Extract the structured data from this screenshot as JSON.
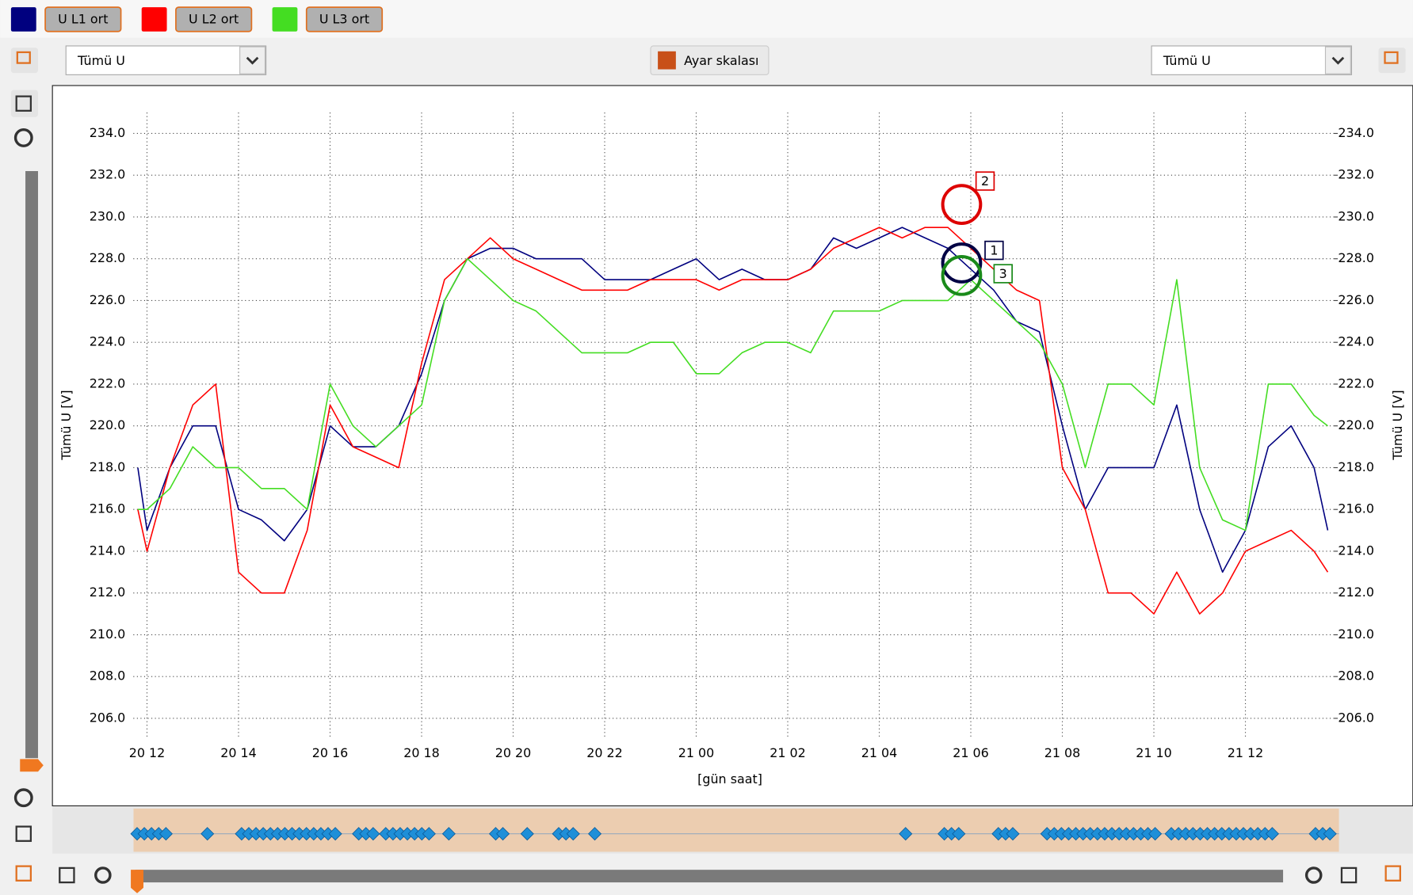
{
  "chart_data": {
    "type": "line",
    "left_selector": "Tümü U",
    "right_selector": "Tümü U",
    "scale_button": "Ayar skalası",
    "y_label": "Tümü U [V]",
    "y2_label": "Tümü U [V]",
    "x_label": "[gün saat]",
    "x": [
      11.8,
      12.0,
      12.5,
      13.0,
      13.5,
      14.0,
      14.5,
      15.0,
      15.5,
      16.0,
      16.5,
      17.0,
      17.5,
      18.0,
      18.5,
      19.0,
      19.5,
      20.0,
      20.5,
      21.0,
      21.5,
      22.0,
      22.5,
      23.0,
      23.5,
      24.0,
      24.5,
      25.0,
      25.5,
      26.0,
      26.5,
      27.0,
      27.5,
      28.0,
      28.5,
      29.0,
      29.5,
      30.0,
      30.5,
      31.0,
      31.5,
      32.0,
      32.5,
      33.0,
      33.5,
      34.0,
      34.5,
      35.0,
      35.5,
      36.0,
      36.5,
      37.0,
      37.5,
      37.8
    ],
    "series": [
      {
        "name": "U L1 ort",
        "color": "#00007f",
        "values": [
          218,
          215,
          218,
          220,
          220,
          216,
          215.5,
          214.5,
          216,
          220,
          219,
          219,
          220,
          222.5,
          226,
          228,
          228.5,
          228.5,
          228,
          228,
          228,
          227,
          227,
          227,
          227.5,
          228,
          227,
          227.5,
          227,
          227,
          227.5,
          229,
          228.5,
          229,
          229.5,
          229,
          228.5,
          227.5,
          226.5,
          225,
          224.5,
          220,
          216,
          218,
          218,
          218,
          221,
          216,
          213,
          215,
          219,
          220,
          218,
          215
        ]
      },
      {
        "name": "U L2 ort",
        "color": "#ff0000",
        "values": [
          216,
          214,
          218,
          221,
          222,
          213,
          212,
          212,
          215,
          221,
          219,
          218.5,
          218,
          223,
          227,
          228,
          229,
          228,
          227.5,
          227,
          226.5,
          226.5,
          226.5,
          227,
          227,
          227,
          226.5,
          227,
          227,
          227,
          227.5,
          228.5,
          229,
          229.5,
          229,
          229.5,
          229.5,
          228.5,
          227.5,
          226.5,
          226,
          218,
          216,
          212,
          212,
          211,
          213,
          211,
          212,
          214,
          214.5,
          215,
          214,
          213
        ]
      },
      {
        "name": "U L3 ort",
        "color": "#44dd22",
        "values": [
          216,
          216,
          217,
          219,
          218,
          218,
          217,
          217,
          216,
          222,
          220,
          219,
          220,
          221,
          226,
          228,
          227,
          226,
          225.5,
          224.5,
          223.5,
          223.5,
          223.5,
          224,
          224,
          222.5,
          222.5,
          223.5,
          224,
          224,
          223.5,
          225.5,
          225.5,
          225.5,
          226,
          226,
          226,
          227,
          226,
          225,
          224,
          222,
          218,
          222,
          222,
          221,
          227,
          218,
          215.5,
          215,
          222,
          222,
          220.5,
          220
        ]
      }
    ],
    "markers": [
      {
        "label": "2",
        "x": 29.8,
        "y": 230.6,
        "color": "#dd0000"
      },
      {
        "label": "1",
        "x": 29.8,
        "y": 227.8,
        "color": "#000044"
      },
      {
        "label": "3",
        "x": 29.8,
        "y": 227.2,
        "color": "#1a8a1a"
      }
    ],
    "xlim": [
      11.8,
      37.9
    ],
    "xticks": [
      {
        "value": 12,
        "label": "20 12"
      },
      {
        "value": 14,
        "label": "20 14"
      },
      {
        "value": 16,
        "label": "20 16"
      },
      {
        "value": 18,
        "label": "20 18"
      },
      {
        "value": 20,
        "label": "20 20"
      },
      {
        "value": 22,
        "label": "20 22"
      },
      {
        "value": 24,
        "label": "21 00"
      },
      {
        "value": 26,
        "label": "21 02"
      },
      {
        "value": 28,
        "label": "21 04"
      },
      {
        "value": 30,
        "label": "21 06"
      },
      {
        "value": 32,
        "label": "21 08"
      },
      {
        "value": 34,
        "label": "21 10"
      },
      {
        "value": 36,
        "label": "21 12"
      }
    ],
    "ylim": [
      205,
      235
    ],
    "yticks": [
      {
        "value": 206,
        "label": "206.0"
      },
      {
        "value": 208,
        "label": "208.0"
      },
      {
        "value": 210,
        "label": "210.0"
      },
      {
        "value": 212,
        "label": "212.0"
      },
      {
        "value": 214,
        "label": "214.0"
      },
      {
        "value": 216,
        "label": "216.0"
      },
      {
        "value": 218,
        "label": "218.0"
      },
      {
        "value": 220,
        "label": "220.0"
      },
      {
        "value": 222,
        "label": "222.0"
      },
      {
        "value": 224,
        "label": "224.0"
      },
      {
        "value": 226,
        "label": "226.0"
      },
      {
        "value": 228,
        "label": "228.0"
      },
      {
        "value": 230,
        "label": "230.0"
      },
      {
        "value": 232,
        "label": "232.0"
      },
      {
        "value": 234,
        "label": "234.0"
      }
    ],
    "y2lim": [
      205,
      235
    ],
    "y2ticks": [
      {
        "value": 206,
        "label": "206.0"
      },
      {
        "value": 208,
        "label": "208.0"
      },
      {
        "value": 210,
        "label": "210.0"
      },
      {
        "value": 212,
        "label": "212.0"
      },
      {
        "value": 214,
        "label": "214.0"
      },
      {
        "value": 216,
        "label": "216.0"
      },
      {
        "value": 218,
        "label": "218.0"
      },
      {
        "value": 220,
        "label": "220.0"
      },
      {
        "value": 222,
        "label": "222.0"
      },
      {
        "value": 224,
        "label": "224.0"
      },
      {
        "value": 226,
        "label": "226.0"
      },
      {
        "value": 228,
        "label": "228.0"
      },
      {
        "value": 230,
        "label": "230.0"
      },
      {
        "value": 232,
        "label": "232.0"
      },
      {
        "value": 234,
        "label": "234.0"
      }
    ],
    "grid": true
  }
}
